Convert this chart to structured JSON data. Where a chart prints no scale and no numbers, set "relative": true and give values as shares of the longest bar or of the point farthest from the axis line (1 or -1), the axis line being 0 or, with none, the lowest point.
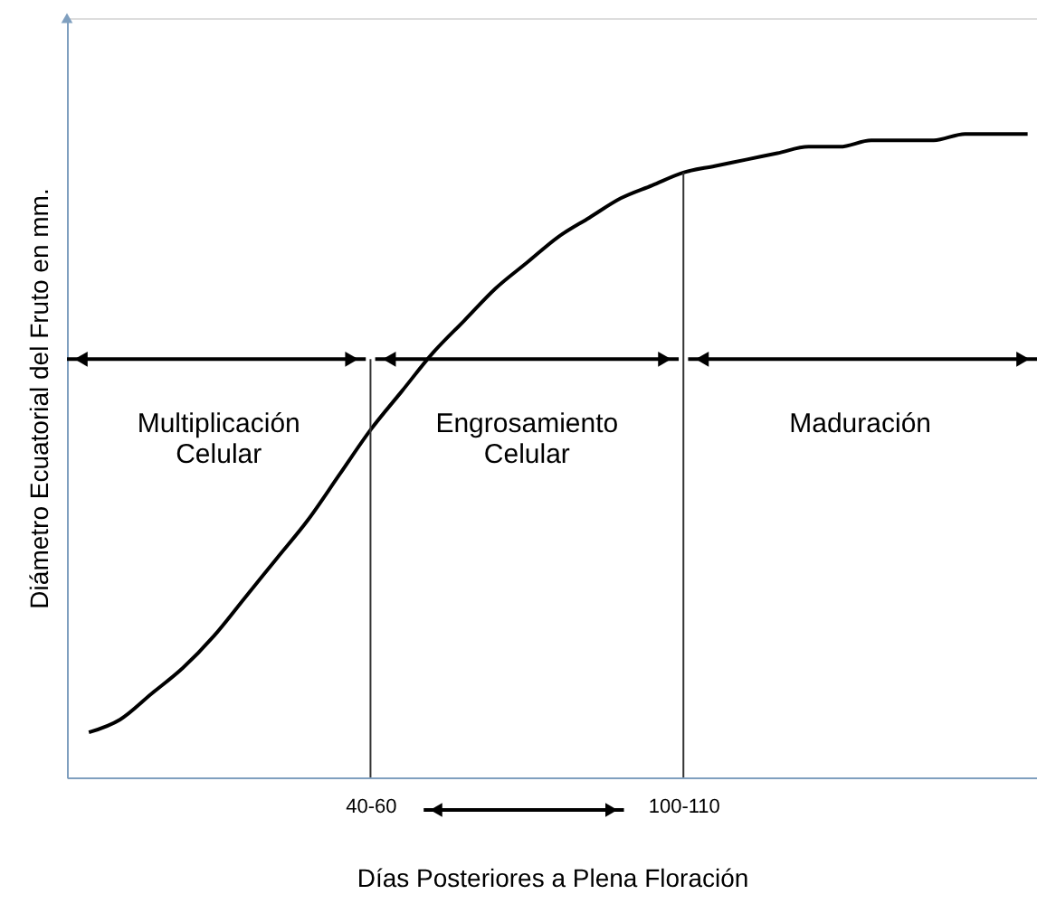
{
  "chart_data": {
    "type": "line",
    "relative": true,
    "color": "#000000",
    "xlabel": "Días Posteriores a Plena Floración",
    "ylabel": "Diámetro Ecuatorial del Fruto en mm.",
    "categories": [
      null,
      null,
      null,
      null,
      null,
      null,
      null,
      null,
      null,
      "40-60",
      null,
      null,
      null,
      null,
      null,
      null,
      null,
      null,
      null,
      "100-110",
      null,
      null,
      null,
      null,
      null,
      null,
      null,
      null,
      null,
      null,
      null
    ],
    "values": [
      0.07,
      0.09,
      0.13,
      0.17,
      0.22,
      0.28,
      0.34,
      0.4,
      0.47,
      0.54,
      0.6,
      0.66,
      0.71,
      0.76,
      0.8,
      0.84,
      0.87,
      0.9,
      0.92,
      0.94,
      0.95,
      0.96,
      0.97,
      0.98,
      0.98,
      0.99,
      0.99,
      0.99,
      1.0,
      1.0,
      1.0
    ],
    "ref_lines": [
      {
        "axis": "x",
        "value": "40-60"
      },
      {
        "axis": "x",
        "value": "100-110"
      }
    ],
    "annotations": [
      "Multiplicación\nCelular",
      "Engrosamiento\nCelular",
      "Maduración"
    ],
    "grid": false
  }
}
